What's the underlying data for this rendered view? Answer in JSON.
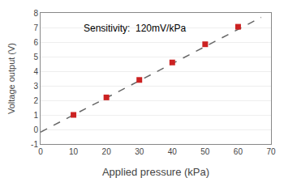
{
  "chart_data": {
    "type": "scatter",
    "xlabel": "Applied pressure (kPa)",
    "ylabel": "Voltage output (V)",
    "annotation": "Sensitivity:  120mV/kPa",
    "series": [
      {
        "type": "line",
        "x": [
          0,
          67
        ],
        "values": [
          -0.18,
          7.6925
        ],
        "color": "#666666",
        "line_style": "dashed"
      },
      {
        "type": "scatter",
        "x": [
          10,
          20,
          30,
          40,
          50,
          60
        ],
        "values": [
          1.0,
          2.2,
          3.4,
          4.6,
          5.85,
          7.05
        ],
        "color": "#cc2222",
        "marker": "square"
      }
    ],
    "xlim": [
      0,
      70
    ],
    "ylim": [
      -1,
      8
    ],
    "xticks": [
      0,
      10,
      20,
      30,
      40,
      50,
      60,
      70
    ],
    "yticks": [
      -1,
      0,
      1,
      2,
      3,
      4,
      5,
      6,
      7,
      8
    ],
    "grid": true
  }
}
